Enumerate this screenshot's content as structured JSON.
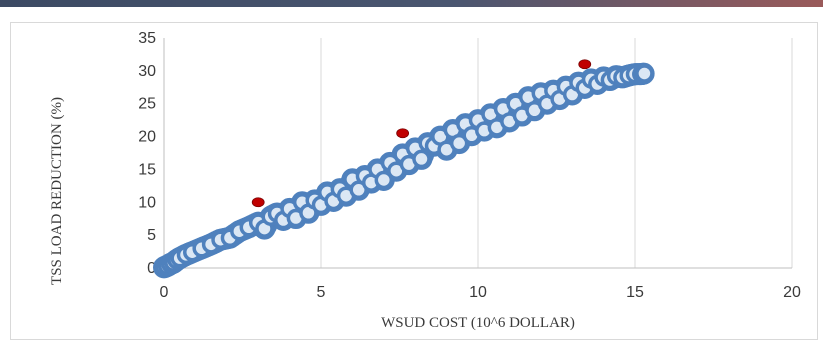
{
  "chart_data": {
    "type": "scatter",
    "title": "",
    "xlabel": "WSUD COST (10^6 DOLLAR)",
    "ylabel": "TSS LOAD REDUCTION  (%)",
    "xlim": [
      0,
      20
    ],
    "ylim": [
      0,
      35
    ],
    "x_ticks": [
      "0",
      "5",
      "10",
      "15",
      "20"
    ],
    "y_ticks": [
      "0",
      "5",
      "10",
      "15",
      "20",
      "25",
      "30",
      "35"
    ],
    "grid": "vertical",
    "legend": "none",
    "colors": {
      "series": "#4f81bd",
      "series_fill": "#dbe7f4",
      "highlight": "#c00000"
    },
    "series": [
      {
        "values": [
          [
            0.0,
            0.1
          ],
          [
            0.1,
            0.3
          ],
          [
            0.2,
            0.6
          ],
          [
            0.3,
            0.8
          ],
          [
            0.4,
            1.2
          ],
          [
            0.5,
            1.5
          ],
          [
            0.7,
            2.0
          ],
          [
            0.9,
            2.4
          ],
          [
            1.2,
            3.0
          ],
          [
            1.5,
            3.6
          ],
          [
            1.8,
            4.3
          ],
          [
            2.1,
            4.6
          ],
          [
            2.4,
            5.6
          ],
          [
            2.7,
            6.2
          ],
          [
            3.0,
            6.9
          ],
          [
            3.2,
            6.0
          ],
          [
            3.4,
            7.8
          ],
          [
            3.6,
            8.3
          ],
          [
            3.8,
            7.3
          ],
          [
            4.0,
            9.0
          ],
          [
            4.2,
            7.6
          ],
          [
            4.4,
            10.0
          ],
          [
            4.6,
            8.4
          ],
          [
            4.8,
            10.3
          ],
          [
            5.0,
            9.6
          ],
          [
            5.2,
            11.5
          ],
          [
            5.4,
            10.2
          ],
          [
            5.6,
            12.0
          ],
          [
            5.8,
            11.0
          ],
          [
            6.0,
            13.5
          ],
          [
            6.2,
            11.9
          ],
          [
            6.4,
            14.0
          ],
          [
            6.6,
            13.0
          ],
          [
            6.8,
            15.0
          ],
          [
            7.0,
            13.4
          ],
          [
            7.2,
            16.0
          ],
          [
            7.4,
            14.8
          ],
          [
            7.6,
            17.3
          ],
          [
            7.8,
            15.8
          ],
          [
            8.0,
            18.2
          ],
          [
            8.2,
            16.6
          ],
          [
            8.4,
            19.0
          ],
          [
            8.6,
            18.6
          ],
          [
            8.8,
            20.0
          ],
          [
            9.0,
            18.0
          ],
          [
            9.2,
            21.0
          ],
          [
            9.4,
            19.0
          ],
          [
            9.6,
            21.9
          ],
          [
            9.8,
            20.2
          ],
          [
            10.0,
            22.5
          ],
          [
            10.2,
            20.9
          ],
          [
            10.4,
            23.4
          ],
          [
            10.6,
            21.4
          ],
          [
            10.8,
            24.2
          ],
          [
            11.0,
            22.3
          ],
          [
            11.2,
            25.0
          ],
          [
            11.4,
            23.2
          ],
          [
            11.6,
            26.0
          ],
          [
            11.8,
            24.0
          ],
          [
            12.0,
            26.6
          ],
          [
            12.2,
            25.0
          ],
          [
            12.4,
            27.0
          ],
          [
            12.6,
            25.7
          ],
          [
            12.8,
            27.6
          ],
          [
            13.0,
            26.4
          ],
          [
            13.2,
            28.2
          ],
          [
            13.4,
            27.4
          ],
          [
            13.6,
            28.7
          ],
          [
            13.8,
            28.0
          ],
          [
            14.0,
            29.0
          ],
          [
            14.2,
            28.6
          ],
          [
            14.4,
            29.2
          ],
          [
            14.6,
            29.0
          ],
          [
            14.8,
            29.3
          ],
          [
            15.0,
            29.5
          ],
          [
            15.2,
            29.5
          ],
          [
            15.3,
            29.6
          ]
        ]
      },
      {
        "values": [
          [
            3.0,
            10.0
          ],
          [
            7.6,
            20.5
          ],
          [
            13.4,
            31.0
          ]
        ]
      }
    ]
  }
}
